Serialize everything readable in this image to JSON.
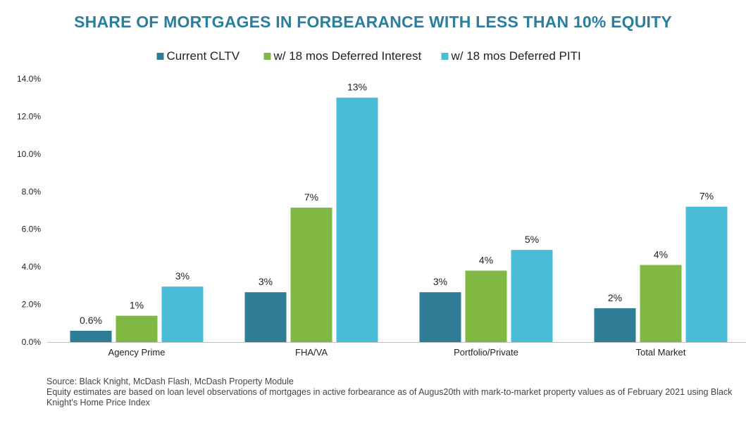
{
  "chart_data": {
    "type": "bar",
    "title": "SHARE OF MORTGAGES IN FORBEARANCE WITH LESS THAN 10% EQUITY",
    "categories": [
      "Agency Prime",
      "FHA/VA",
      "Portfolio/Private",
      "Total Market"
    ],
    "series": [
      {
        "name": "Current CLTV",
        "color": "#2e7c96",
        "values": [
          0.6,
          2.65,
          2.65,
          1.8
        ],
        "labels": [
          "0.6%",
          "3%",
          "3%",
          "2%"
        ]
      },
      {
        "name": "w/ 18 mos Deferred Interest",
        "color": "#80b843",
        "values": [
          1.4,
          7.15,
          3.8,
          4.1
        ],
        "labels": [
          "1%",
          "7%",
          "4%",
          "4%"
        ]
      },
      {
        "name": "w/ 18 mos Deferred PITI",
        "color": "#4bbcd8",
        "values": [
          2.95,
          13.0,
          4.9,
          7.2
        ],
        "labels": [
          "3%",
          "13%",
          "5%",
          "7%"
        ]
      }
    ],
    "ylim": [
      0,
      14
    ],
    "yticks": [
      "0.0%",
      "2.0%",
      "4.0%",
      "6.0%",
      "8.0%",
      "10.0%",
      "12.0%",
      "14.0%"
    ],
    "ytick_values": [
      0,
      2,
      4,
      6,
      8,
      10,
      12,
      14
    ],
    "legend_position": "top-center",
    "grid": false
  },
  "notes": {
    "source": "Source: Black Knight, McDash Flash, McDash Property Module",
    "equity": "Equity estimates are based on loan level observations of mortgages in active forbearance as of Augus20th with mark-to-market property values as of February 2021 using Black Knight's Home Price Index"
  }
}
